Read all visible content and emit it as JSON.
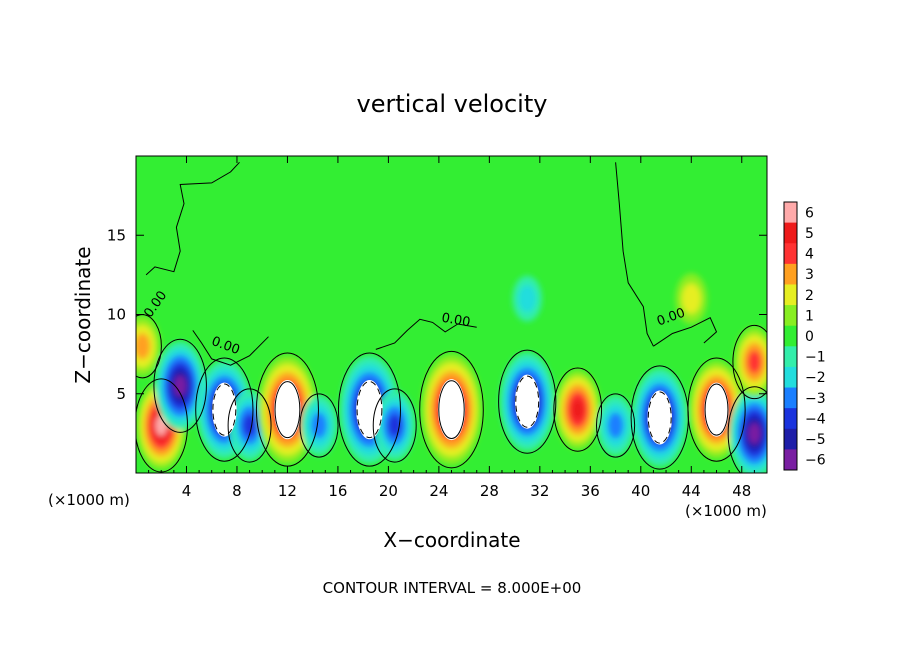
{
  "chart_data": {
    "type": "heatmap",
    "title": "vertical velocity",
    "xlabel": "X−coordinate",
    "ylabel": "Z−coordinate",
    "x_units_left": "(×1000 m)",
    "x_units_right": "(×1000 m)",
    "xlim": [
      0,
      50
    ],
    "ylim": [
      0,
      20
    ],
    "x_ticks": [
      4,
      8,
      12,
      16,
      20,
      24,
      28,
      32,
      36,
      40,
      44,
      48
    ],
    "y_ticks": [
      5,
      10,
      15
    ],
    "colorbar": {
      "ticks": [
        "6",
        "5",
        "4",
        "3",
        "2",
        "1",
        "0",
        "−1",
        "−2",
        "−3",
        "−4",
        "−5",
        "−6"
      ],
      "range": [
        -6,
        6
      ]
    },
    "contour_labels": [
      "0.00",
      "0.00",
      "0.00",
      "0.00"
    ],
    "footer": "CONTOUR INTERVAL = 8.000E+00",
    "cells": [
      {
        "x": 2,
        "z": 3,
        "w": 6
      },
      {
        "x": 3.5,
        "z": 5.5,
        "w": -6
      },
      {
        "x": 7,
        "z": 4,
        "w": -7
      },
      {
        "x": 9,
        "z": 3,
        "w": -4
      },
      {
        "x": 12,
        "z": 4,
        "w": 8
      },
      {
        "x": 14.5,
        "z": 3,
        "w": -3
      },
      {
        "x": 18.5,
        "z": 4,
        "w": -8
      },
      {
        "x": 20.5,
        "z": 3,
        "w": -4
      },
      {
        "x": 25,
        "z": 4,
        "w": 9
      },
      {
        "x": 31,
        "z": 4.5,
        "w": -7
      },
      {
        "x": 35,
        "z": 4,
        "w": 5
      },
      {
        "x": 38,
        "z": 3,
        "w": -3
      },
      {
        "x": 41.5,
        "z": 3.5,
        "w": -7
      },
      {
        "x": 46,
        "z": 4,
        "w": 7
      },
      {
        "x": 49,
        "z": 2.5,
        "w": -6
      },
      {
        "x": 49,
        "z": 7,
        "w": 4
      },
      {
        "x": 0.5,
        "z": 8,
        "w": 3
      },
      {
        "x": 44,
        "z": 11,
        "w": 2
      },
      {
        "x": 31,
        "z": 11,
        "w": -1.5
      }
    ]
  },
  "colors": {
    "background_field": "#33ee33",
    "colorbar": [
      "#7a1fa2",
      "#1e1ea8",
      "#1a33dd",
      "#1a7fff",
      "#22dddd",
      "#33eeaa",
      "#33ee33",
      "#88ee22",
      "#e6ee22",
      "#ffa020",
      "#ff3333",
      "#ee1a1a",
      "#ffaaaa"
    ]
  }
}
